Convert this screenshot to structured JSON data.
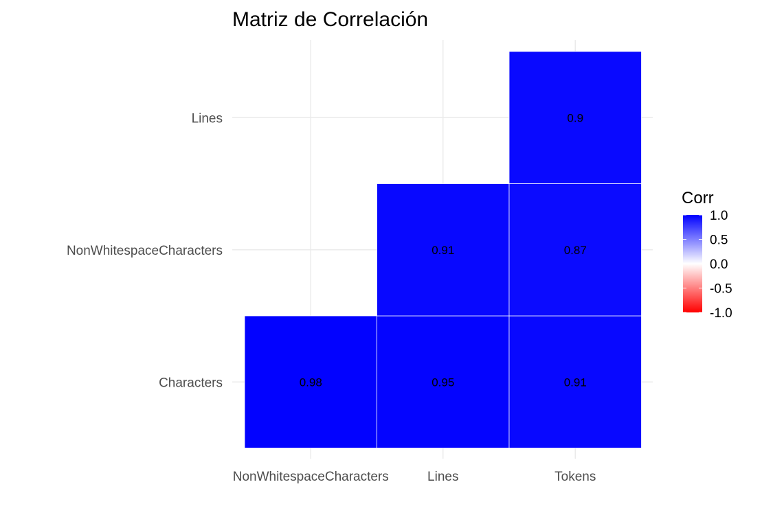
{
  "chart_data": {
    "type": "heatmap",
    "title": "Matriz de Correlación",
    "xlabel": "",
    "ylabel": "",
    "x_categories": [
      "NonWhitespaceCharacters",
      "Lines",
      "Tokens"
    ],
    "y_categories": [
      "Characters",
      "NonWhitespaceCharacters",
      "Lines"
    ],
    "cells": [
      {
        "x": "NonWhitespaceCharacters",
        "y": "Characters",
        "value": 0.98,
        "label": "0.98"
      },
      {
        "x": "Lines",
        "y": "Characters",
        "value": 0.95,
        "label": "0.95"
      },
      {
        "x": "Tokens",
        "y": "Characters",
        "value": 0.91,
        "label": "0.91"
      },
      {
        "x": "Lines",
        "y": "NonWhitespaceCharacters",
        "value": 0.91,
        "label": "0.91"
      },
      {
        "x": "Tokens",
        "y": "NonWhitespaceCharacters",
        "value": 0.87,
        "label": "0.87"
      },
      {
        "x": "Tokens",
        "y": "Lines",
        "value": 0.9,
        "label": "0.9"
      }
    ],
    "legend": {
      "title": "Corr",
      "placement": "right",
      "range": [
        -1.0,
        1.0
      ],
      "ticks": [
        {
          "value": 1.0,
          "label": "1.0"
        },
        {
          "value": 0.5,
          "label": "0.5"
        },
        {
          "value": 0.0,
          "label": "0.0"
        },
        {
          "value": -0.5,
          "label": "-0.5"
        },
        {
          "value": -1.0,
          "label": "-1.0"
        }
      ],
      "colors": {
        "low": "#ff0000",
        "mid": "#ffffff",
        "high": "#0000ff"
      }
    },
    "grid": true
  }
}
